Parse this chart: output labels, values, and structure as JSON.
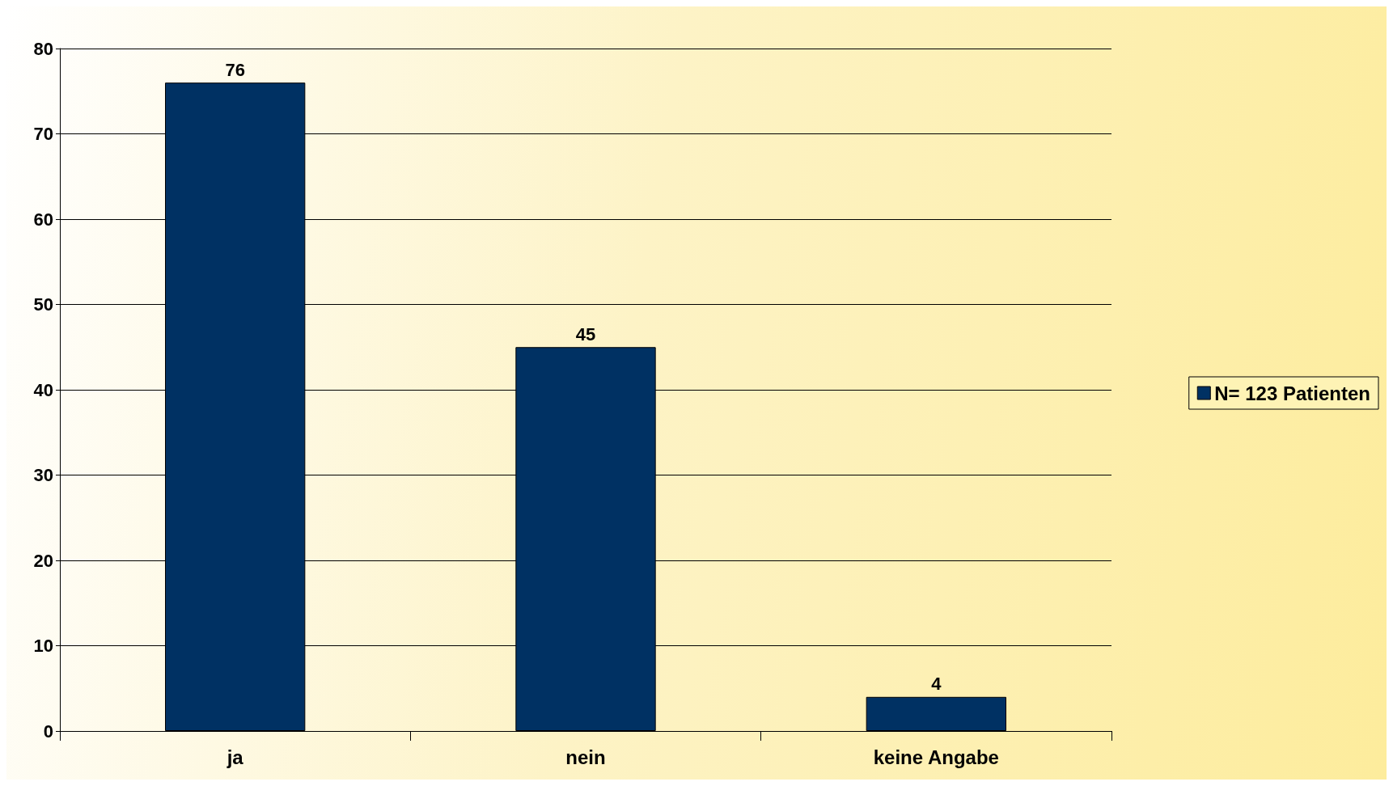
{
  "chart_data": {
    "type": "bar",
    "categories": [
      "ja",
      "nein",
      "keine Angabe"
    ],
    "series": [
      {
        "name": "N= 123 Patienten",
        "color": "#003163",
        "values": [
          76,
          45,
          4
        ]
      }
    ],
    "ylim": [
      0,
      80
    ],
    "yticks": [
      0,
      10,
      20,
      30,
      40,
      50,
      60,
      70,
      80
    ],
    "grid": "y",
    "legend": "right",
    "data_labels": true
  }
}
